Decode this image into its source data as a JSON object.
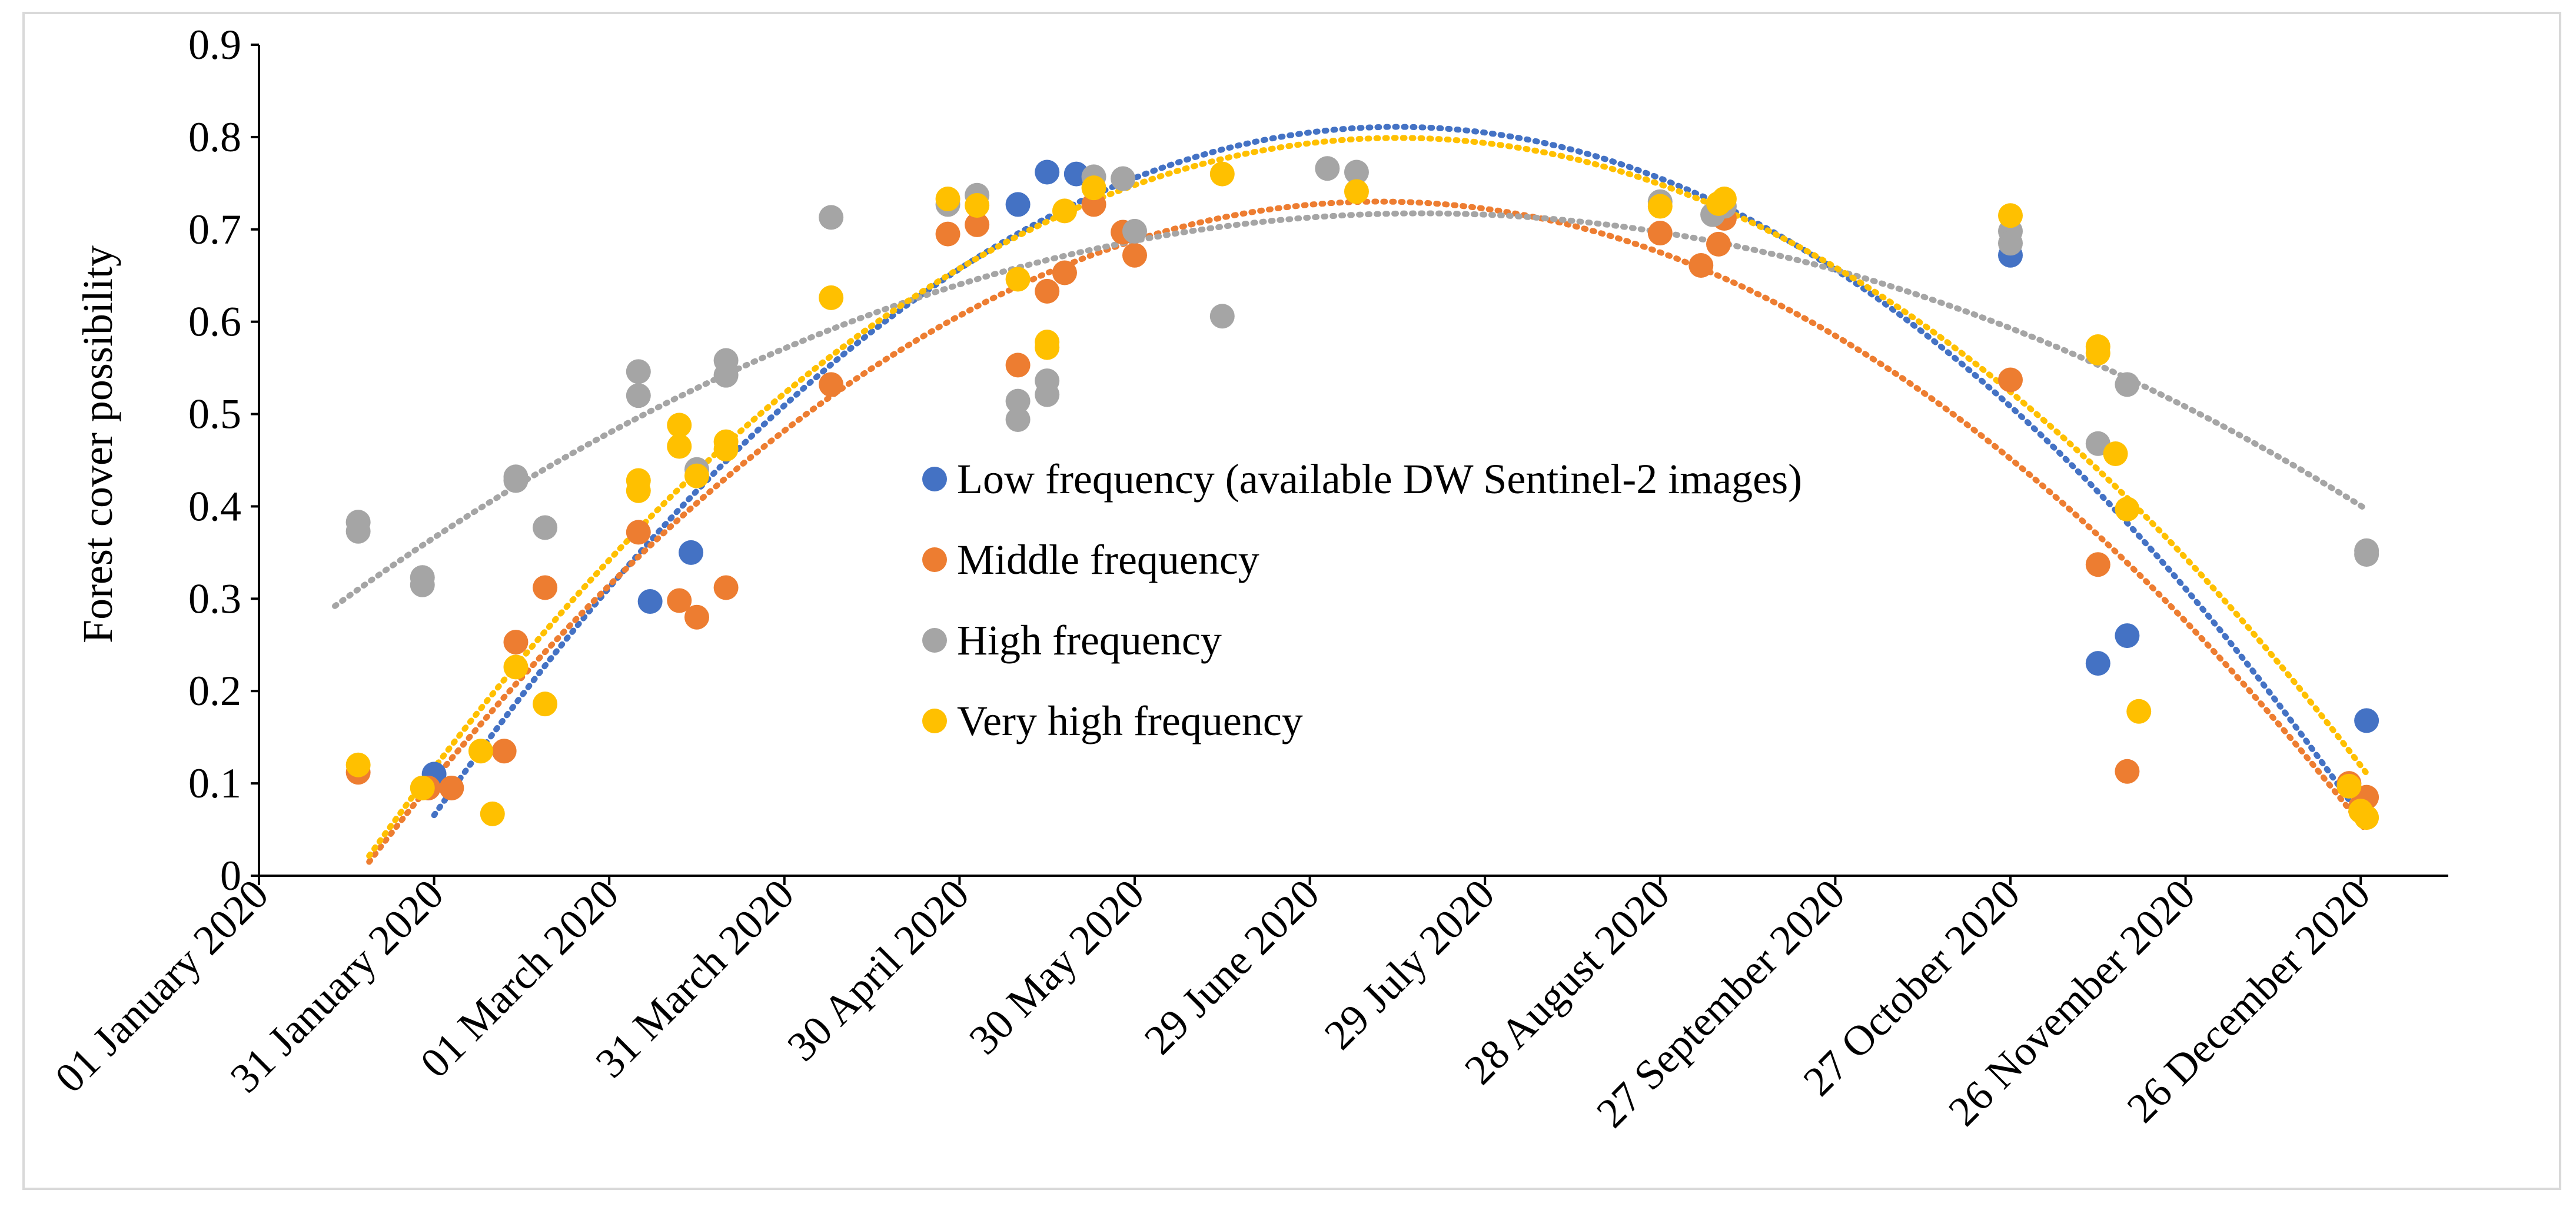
{
  "chart_data": {
    "type": "scatter",
    "title": "",
    "xlabel": "",
    "ylabel": "Forest cover possibility",
    "xlim": [
      "2020-01-01",
      "2021-01-10"
    ],
    "ylim": [
      0,
      0.9
    ],
    "y_ticks": [
      "0",
      "0.1",
      "0.2",
      "0.3",
      "0.4",
      "0.5",
      "0.6",
      "0.7",
      "0.8",
      "0.9"
    ],
    "x_ticks": [
      {
        "date": "2020-01-01",
        "label": "01 January 2020"
      },
      {
        "date": "2020-01-31",
        "label": "31 January 2020"
      },
      {
        "date": "2020-03-01",
        "label": "01 March 2020"
      },
      {
        "date": "2020-03-31",
        "label": "31 March 2020"
      },
      {
        "date": "2020-04-30",
        "label": "30 April 2020"
      },
      {
        "date": "2020-05-30",
        "label": "30 May 2020"
      },
      {
        "date": "2020-06-29",
        "label": "29 June 2020"
      },
      {
        "date": "2020-07-29",
        "label": "29 July 2020"
      },
      {
        "date": "2020-08-28",
        "label": "28 August 2020"
      },
      {
        "date": "2020-09-27",
        "label": "27 September 2020"
      },
      {
        "date": "2020-10-27",
        "label": "27 October 2020"
      },
      {
        "date": "2020-11-26",
        "label": "26 November 2020"
      },
      {
        "date": "2020-12-26",
        "label": "26 December 2020"
      }
    ],
    "grid": false,
    "legend_position": "center",
    "trendline": "polynomial (order 2), dotted",
    "series": [
      {
        "name": "Low frequency (available DW Sentinel-2 images)",
        "color": "#4472C4",
        "points": [
          {
            "x": "2020-01-31",
            "y": 0.11
          },
          {
            "x": "2020-03-08",
            "y": 0.297
          },
          {
            "x": "2020-03-15",
            "y": 0.35
          },
          {
            "x": "2020-05-10",
            "y": 0.727
          },
          {
            "x": "2020-05-15",
            "y": 0.762
          },
          {
            "x": "2020-05-20",
            "y": 0.76
          },
          {
            "x": "2020-10-27",
            "y": 0.672
          },
          {
            "x": "2020-11-11",
            "y": 0.23
          },
          {
            "x": "2020-11-16",
            "y": 0.26
          },
          {
            "x": "2020-12-27",
            "y": 0.168
          }
        ],
        "trend": {
          "x_range": [
            "2020-01-31",
            "2020-12-27"
          ]
        }
      },
      {
        "name": "Middle frequency",
        "color": "#ED7D31",
        "points": [
          {
            "x": "2020-01-18",
            "y": 0.112
          },
          {
            "x": "2020-01-30",
            "y": 0.095
          },
          {
            "x": "2020-02-03",
            "y": 0.095
          },
          {
            "x": "2020-02-12",
            "y": 0.135
          },
          {
            "x": "2020-02-14",
            "y": 0.253
          },
          {
            "x": "2020-02-19",
            "y": 0.312
          },
          {
            "x": "2020-03-06",
            "y": 0.372
          },
          {
            "x": "2020-03-13",
            "y": 0.298
          },
          {
            "x": "2020-03-16",
            "y": 0.28
          },
          {
            "x": "2020-03-21",
            "y": 0.312
          },
          {
            "x": "2020-04-08",
            "y": 0.532
          },
          {
            "x": "2020-04-28",
            "y": 0.695
          },
          {
            "x": "2020-05-03",
            "y": 0.705
          },
          {
            "x": "2020-05-10",
            "y": 0.553
          },
          {
            "x": "2020-05-15",
            "y": 0.633
          },
          {
            "x": "2020-05-18",
            "y": 0.653
          },
          {
            "x": "2020-05-23",
            "y": 0.727
          },
          {
            "x": "2020-05-28",
            "y": 0.697
          },
          {
            "x": "2020-05-30",
            "y": 0.672
          },
          {
            "x": "2020-08-28",
            "y": 0.696
          },
          {
            "x": "2020-09-04",
            "y": 0.661
          },
          {
            "x": "2020-09-07",
            "y": 0.684
          },
          {
            "x": "2020-09-08",
            "y": 0.712
          },
          {
            "x": "2020-10-27",
            "y": 0.537
          },
          {
            "x": "2020-11-11",
            "y": 0.337
          },
          {
            "x": "2020-11-16",
            "y": 0.113
          },
          {
            "x": "2020-12-24",
            "y": 0.1
          },
          {
            "x": "2020-12-26",
            "y": 0.075
          },
          {
            "x": "2020-12-27",
            "y": 0.085
          }
        ],
        "trend": {
          "x_range": [
            "2020-01-17",
            "2020-12-27"
          ]
        }
      },
      {
        "name": "High frequency",
        "color": "#A5A5A5",
        "points": [
          {
            "x": "2020-01-18",
            "y": 0.383
          },
          {
            "x": "2020-01-18",
            "y": 0.373
          },
          {
            "x": "2020-01-29",
            "y": 0.323
          },
          {
            "x": "2020-01-29",
            "y": 0.315
          },
          {
            "x": "2020-02-14",
            "y": 0.432
          },
          {
            "x": "2020-02-14",
            "y": 0.428
          },
          {
            "x": "2020-02-19",
            "y": 0.377
          },
          {
            "x": "2020-03-06",
            "y": 0.546
          },
          {
            "x": "2020-03-06",
            "y": 0.52
          },
          {
            "x": "2020-03-16",
            "y": 0.44
          },
          {
            "x": "2020-03-21",
            "y": 0.558
          },
          {
            "x": "2020-03-21",
            "y": 0.542
          },
          {
            "x": "2020-04-08",
            "y": 0.713
          },
          {
            "x": "2020-04-28",
            "y": 0.727
          },
          {
            "x": "2020-05-03",
            "y": 0.737
          },
          {
            "x": "2020-05-10",
            "y": 0.514
          },
          {
            "x": "2020-05-10",
            "y": 0.494
          },
          {
            "x": "2020-05-15",
            "y": 0.536
          },
          {
            "x": "2020-05-15",
            "y": 0.521
          },
          {
            "x": "2020-05-23",
            "y": 0.757
          },
          {
            "x": "2020-05-28",
            "y": 0.755
          },
          {
            "x": "2020-05-30",
            "y": 0.698
          },
          {
            "x": "2020-06-14",
            "y": 0.606
          },
          {
            "x": "2020-07-02",
            "y": 0.766
          },
          {
            "x": "2020-07-07",
            "y": 0.762
          },
          {
            "x": "2020-08-28",
            "y": 0.73
          },
          {
            "x": "2020-09-06",
            "y": 0.716
          },
          {
            "x": "2020-09-08",
            "y": 0.725
          },
          {
            "x": "2020-10-27",
            "y": 0.698
          },
          {
            "x": "2020-10-27",
            "y": 0.685
          },
          {
            "x": "2020-11-11",
            "y": 0.468
          },
          {
            "x": "2020-11-16",
            "y": 0.532
          },
          {
            "x": "2020-12-27",
            "y": 0.352
          },
          {
            "x": "2020-12-27",
            "y": 0.348
          }
        ],
        "trend": {
          "x_range": [
            "2020-01-14",
            "2020-12-27"
          ]
        }
      },
      {
        "name": "Very high frequency",
        "color": "#FFC000",
        "points": [
          {
            "x": "2020-01-18",
            "y": 0.12
          },
          {
            "x": "2020-01-29",
            "y": 0.095
          },
          {
            "x": "2020-02-08",
            "y": 0.135
          },
          {
            "x": "2020-02-10",
            "y": 0.067
          },
          {
            "x": "2020-02-14",
            "y": 0.226
          },
          {
            "x": "2020-02-19",
            "y": 0.186
          },
          {
            "x": "2020-03-06",
            "y": 0.428
          },
          {
            "x": "2020-03-06",
            "y": 0.417
          },
          {
            "x": "2020-03-13",
            "y": 0.488
          },
          {
            "x": "2020-03-13",
            "y": 0.465
          },
          {
            "x": "2020-03-16",
            "y": 0.433
          },
          {
            "x": "2020-03-21",
            "y": 0.47
          },
          {
            "x": "2020-03-21",
            "y": 0.462
          },
          {
            "x": "2020-04-08",
            "y": 0.626
          },
          {
            "x": "2020-04-28",
            "y": 0.733
          },
          {
            "x": "2020-05-03",
            "y": 0.726
          },
          {
            "x": "2020-05-10",
            "y": 0.646
          },
          {
            "x": "2020-05-15",
            "y": 0.578
          },
          {
            "x": "2020-05-15",
            "y": 0.572
          },
          {
            "x": "2020-05-18",
            "y": 0.72
          },
          {
            "x": "2020-05-23",
            "y": 0.745
          },
          {
            "x": "2020-06-14",
            "y": 0.76
          },
          {
            "x": "2020-07-07",
            "y": 0.741
          },
          {
            "x": "2020-08-28",
            "y": 0.725
          },
          {
            "x": "2020-09-07",
            "y": 0.728
          },
          {
            "x": "2020-09-08",
            "y": 0.733
          },
          {
            "x": "2020-10-27",
            "y": 0.715
          },
          {
            "x": "2020-11-11",
            "y": 0.573
          },
          {
            "x": "2020-11-11",
            "y": 0.566
          },
          {
            "x": "2020-11-14",
            "y": 0.457
          },
          {
            "x": "2020-11-16",
            "y": 0.397
          },
          {
            "x": "2020-11-18",
            "y": 0.178
          },
          {
            "x": "2020-12-24",
            "y": 0.097
          },
          {
            "x": "2020-12-26",
            "y": 0.07
          },
          {
            "x": "2020-12-27",
            "y": 0.063
          }
        ],
        "trend": {
          "x_range": [
            "2020-01-17",
            "2020-12-27"
          ]
        }
      }
    ]
  }
}
